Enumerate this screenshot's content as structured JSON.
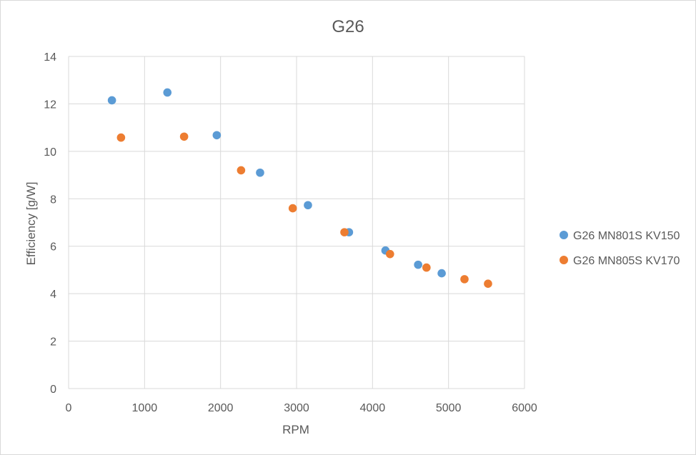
{
  "chart_data": {
    "type": "scatter",
    "title": "G26",
    "xlabel": "RPM",
    "ylabel": "Efficiency [g/W]",
    "xlim": [
      0,
      6000
    ],
    "ylim": [
      0,
      14
    ],
    "xticks": [
      "0",
      "1000",
      "2000",
      "3000",
      "4000",
      "5000",
      "6000"
    ],
    "yticks": [
      "0",
      "2",
      "4",
      "6",
      "8",
      "10",
      "12",
      "14"
    ],
    "grid": true,
    "legend_position": "right",
    "series": [
      {
        "name": "G26 MN801S KV150",
        "color": "#5b9bd5",
        "points": [
          [
            570,
            12.15
          ],
          [
            1300,
            12.48
          ],
          [
            1950,
            10.68
          ],
          [
            2520,
            9.1
          ],
          [
            3150,
            7.73
          ],
          [
            3690,
            6.59
          ],
          [
            4170,
            5.82
          ],
          [
            4600,
            5.22
          ],
          [
            4910,
            4.86
          ]
        ]
      },
      {
        "name": "G26 MN805S KV170",
        "color": "#ed7d31",
        "points": [
          [
            690,
            10.58
          ],
          [
            1520,
            10.62
          ],
          [
            2270,
            9.2
          ],
          [
            2950,
            7.6
          ],
          [
            3630,
            6.59
          ],
          [
            4230,
            5.67
          ],
          [
            4710,
            5.1
          ],
          [
            5210,
            4.61
          ],
          [
            5520,
            4.42
          ]
        ]
      }
    ]
  }
}
